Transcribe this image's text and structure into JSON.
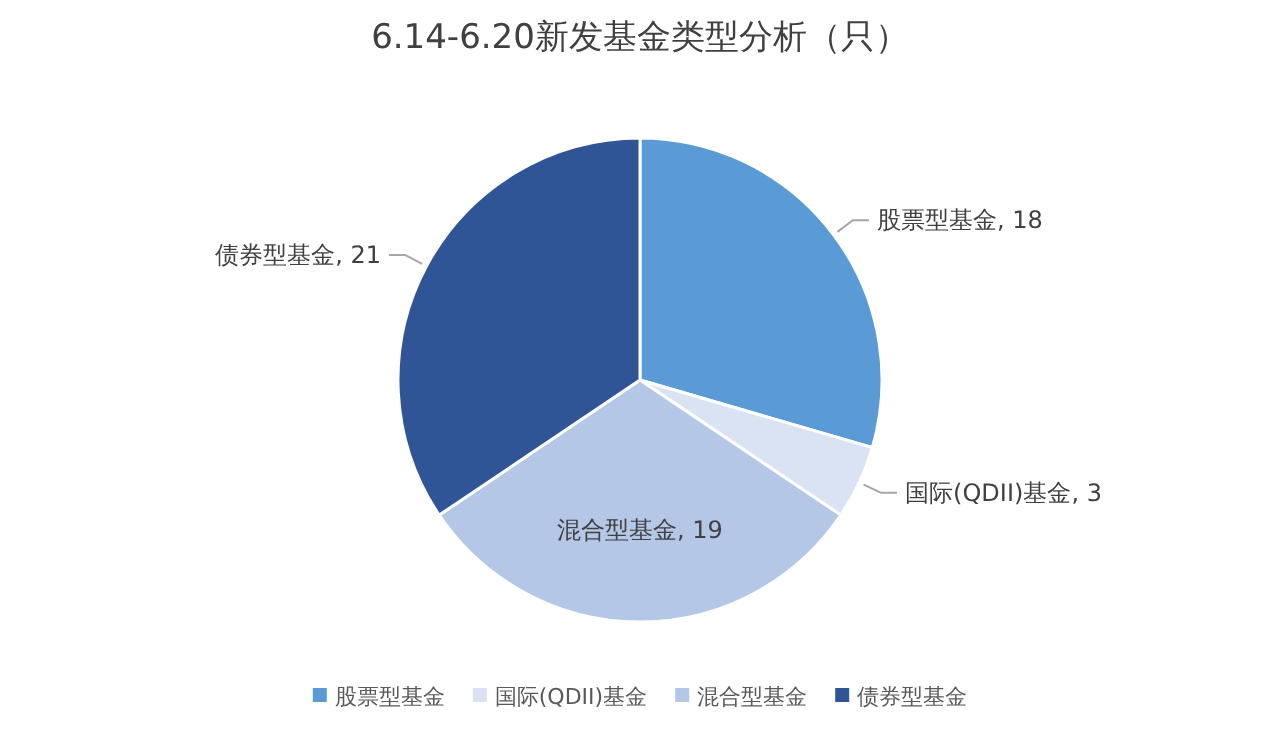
{
  "chart_data": {
    "type": "pie",
    "title": "6.14-6.20新发基金类型分析（只）",
    "categories": [
      "股票型基金",
      "国际(QDII)基金",
      "混合型基金",
      "债券型基金"
    ],
    "values": [
      18,
      3,
      19,
      21
    ],
    "colors": [
      "#5b9bd5",
      "#dae3f3",
      "#b4c7e7",
      "#2f5597"
    ],
    "value_labels": [
      ", 18",
      ", 3",
      ", 19",
      ", 21"
    ],
    "legend": "bottom"
  }
}
